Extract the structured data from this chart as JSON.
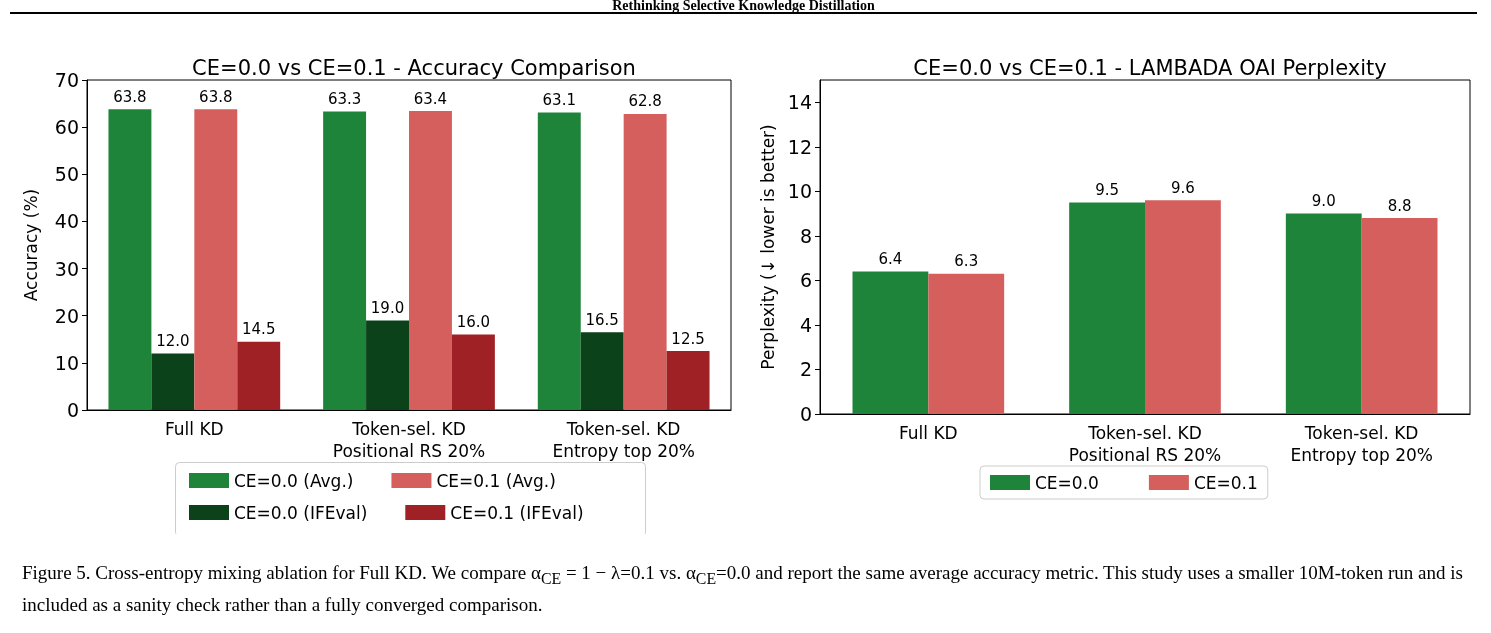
{
  "chart_data": [
    {
      "type": "bar",
      "title": "CE=0.0 vs CE=0.1 - Accuracy Comparison",
      "ylabel": "Accuracy (%)",
      "categories": [
        "Full KD",
        "Token-sel. KD\nPositional RS 20%",
        "Token-sel. KD\nEntropy top 20%"
      ],
      "series": [
        {
          "name": "CE=0.0 (Avg.)",
          "color": "#1e843a",
          "values": [
            63.8,
            63.3,
            63.1
          ],
          "value_labels": [
            "63.8",
            "63.3",
            "63.1"
          ]
        },
        {
          "name": "CE=0.0 (IFEval)",
          "color": "#0b421a",
          "values": [
            12.0,
            19.0,
            16.5
          ],
          "value_labels": [
            "12.0",
            "19.0",
            "16.5"
          ]
        },
        {
          "name": "CE=0.1 (Avg.)",
          "color": "#d45f5d",
          "values": [
            63.8,
            63.4,
            62.8
          ],
          "value_labels": [
            "63.8",
            "63.4",
            "62.8"
          ]
        },
        {
          "name": "CE=0.1 (IFEval)",
          "color": "#a02125",
          "values": [
            14.5,
            16.0,
            12.5
          ],
          "value_labels": [
            "14.5",
            "16.0",
            "12.5"
          ]
        }
      ],
      "ylim": [
        0,
        70
      ],
      "yticks": [
        0,
        10,
        20,
        30,
        40,
        50,
        60,
        70
      ],
      "grid": false,
      "legend": "bottom",
      "annotations": [
        "Rethinking Selective Knowledge Distillation"
      ]
    },
    {
      "type": "bar",
      "title": "CE=0.0 vs CE=0.1 - LAMBADA OAI Perplexity",
      "ylabel": "Perplexity (↓ lower is better)",
      "categories": [
        "Full KD",
        "Token-sel. KD\nPositional RS 20%",
        "Token-sel. KD\nEntropy top 20%"
      ],
      "series": [
        {
          "name": "CE=0.0",
          "color": "#1e843a",
          "values": [
            6.4,
            9.5,
            9.0
          ],
          "value_labels": [
            "6.4",
            "9.5",
            "9.0"
          ]
        },
        {
          "name": "CE=0.1",
          "color": "#d45f5d",
          "values": [
            6.3,
            9.6,
            8.8
          ],
          "value_labels": [
            "6.3",
            "9.6",
            "8.8"
          ]
        }
      ],
      "ylim": [
        0,
        15
      ],
      "yticks": [
        0,
        2,
        4,
        6,
        8,
        10,
        12,
        14
      ],
      "grid": false,
      "legend": "bottom",
      "annotations": [
        "Figure 5. Cross-entropy mixing ablation for Full KD. We compare α$_{CE}$ = 1 − λ=0.1 vs. α$_{CE}$=0.0 and report the same average accuracy metric. This study uses a smaller 10M-token run and is included as a sanity check rather than a fully converged comparison."
      ]
    }
  ]
}
